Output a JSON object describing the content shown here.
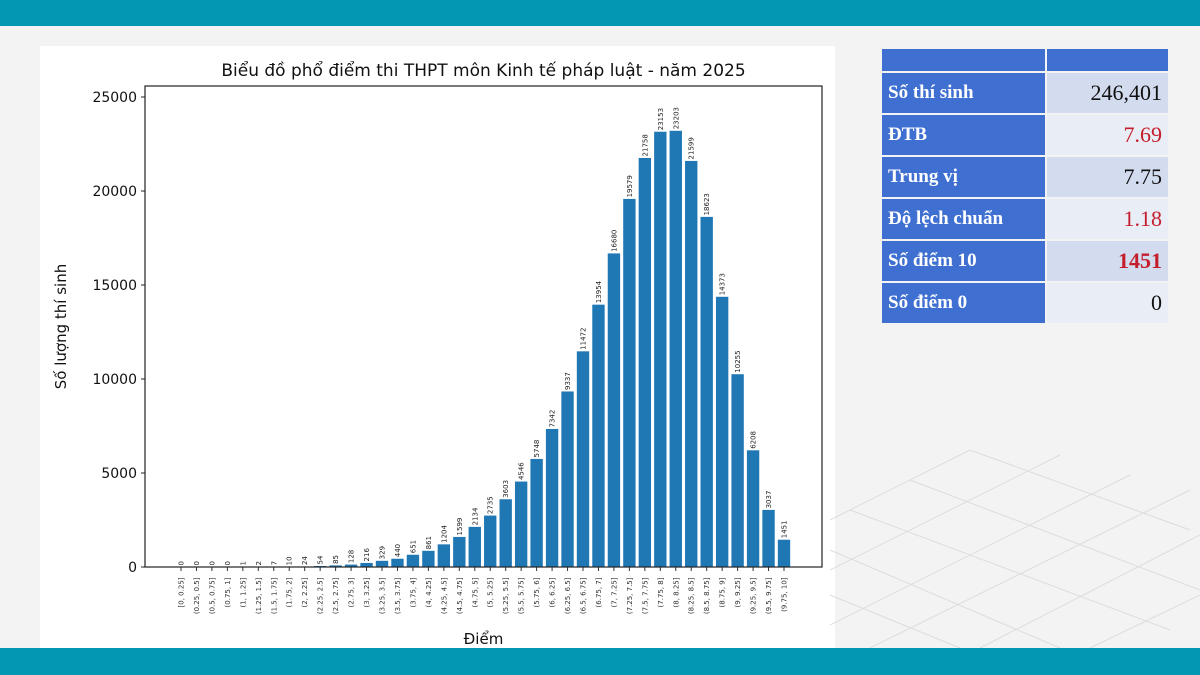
{
  "chart_data": {
    "type": "bar",
    "title": "Biểu đồ phổ điểm thi THPT môn Kinh tế pháp luật - năm 2025",
    "xlabel": "Điểm",
    "ylabel": "Số lượng thí sinh",
    "ylim": [
      0,
      25000
    ],
    "yticks": [
      0,
      5000,
      10000,
      15000,
      20000,
      25000
    ],
    "grid": false,
    "bar_color": "#1f77b4",
    "categories": [
      "[0, 0.25]",
      "(0.25, 0.5]",
      "(0.5, 0.75]",
      "(0.75, 1]",
      "(1, 1.25]",
      "(1.25, 1.5]",
      "(1.5, 1.75]",
      "(1.75, 2]",
      "(2, 2.25]",
      "(2.25, 2.5]",
      "(2.5, 2.75]",
      "(2.75, 3]",
      "(3, 3.25]",
      "(3.25, 3.5]",
      "(3.5, 3.75]",
      "(3.75, 4]",
      "(4, 4.25]",
      "(4.25, 4.5]",
      "(4.5, 4.75]",
      "(4.75, 5]",
      "(5, 5.25]",
      "(5.25, 5.5]",
      "(5.5, 5.75]",
      "(5.75, 6]",
      "(6, 6.25]",
      "(6.25, 6.5]",
      "(6.5, 6.75]",
      "(6.75, 7]",
      "(7, 7.25]",
      "(7.25, 7.5]",
      "(7.5, 7.75]",
      "(7.75, 8]",
      "(8, 8.25]",
      "(8.25, 8.5]",
      "(8.5, 8.75]",
      "(8.75, 9]",
      "(9, 9.25]",
      "(9.25, 9.5]",
      "(9.5, 9.75]",
      "(9.75, 10]"
    ],
    "values": [
      0,
      0,
      0,
      0,
      1,
      2,
      7,
      10,
      24,
      54,
      85,
      128,
      216,
      329,
      440,
      651,
      861,
      1204,
      1599,
      2134,
      2735,
      3603,
      4546,
      5748,
      7342,
      9337,
      11472,
      13954,
      16680,
      19579,
      21758,
      23153,
      23203,
      21599,
      18623,
      14373,
      10255,
      6208,
      3037,
      1451
    ]
  },
  "stats_table": {
    "rows": [
      {
        "label": "Số thí sinh",
        "value": "246,401",
        "value_color": "#111111"
      },
      {
        "label": "ĐTB",
        "value": "7.69",
        "value_color": "#c41e2c"
      },
      {
        "label": "Trung vị",
        "value": "7.75",
        "value_color": "#111111"
      },
      {
        "label": "Độ lệch chuẩn",
        "value": "1.18",
        "value_color": "#c41e2c"
      },
      {
        "label": "Số điểm 10",
        "value": "1451",
        "value_color": "#c41e2c"
      },
      {
        "label": "Số điểm 0",
        "value": "0",
        "value_color": "#111111"
      }
    ]
  },
  "colors": {
    "band": "#0397b4",
    "table_header": "#3f6fd1",
    "bar": "#1f77b4"
  }
}
